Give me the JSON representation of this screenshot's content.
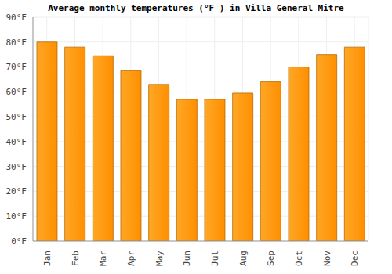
{
  "chart_data": {
    "type": "bar",
    "title": "Average monthly temperatures (°F ) in Villa General Mitre",
    "categories": [
      "Jan",
      "Feb",
      "Mar",
      "Apr",
      "May",
      "Jun",
      "Jul",
      "Aug",
      "Sep",
      "Oct",
      "Nov",
      "Dec"
    ],
    "values": [
      80,
      78,
      74.5,
      68.5,
      63,
      57,
      57,
      59.5,
      64,
      70,
      75,
      78
    ],
    "color": "#ffa726",
    "ylim": [
      0,
      90
    ],
    "yticks": [
      {
        "value": 0,
        "label": "0°F"
      },
      {
        "value": 10,
        "label": "10°F"
      },
      {
        "value": 20,
        "label": "20°F"
      },
      {
        "value": 30,
        "label": "30°F"
      },
      {
        "value": 40,
        "label": "40°F"
      },
      {
        "value": 50,
        "label": "50°F"
      },
      {
        "value": 60,
        "label": "60°F"
      },
      {
        "value": 70,
        "label": "70°F"
      },
      {
        "value": 80,
        "label": "80°F"
      },
      {
        "value": 90,
        "label": "90°F"
      }
    ],
    "grid": true
  }
}
